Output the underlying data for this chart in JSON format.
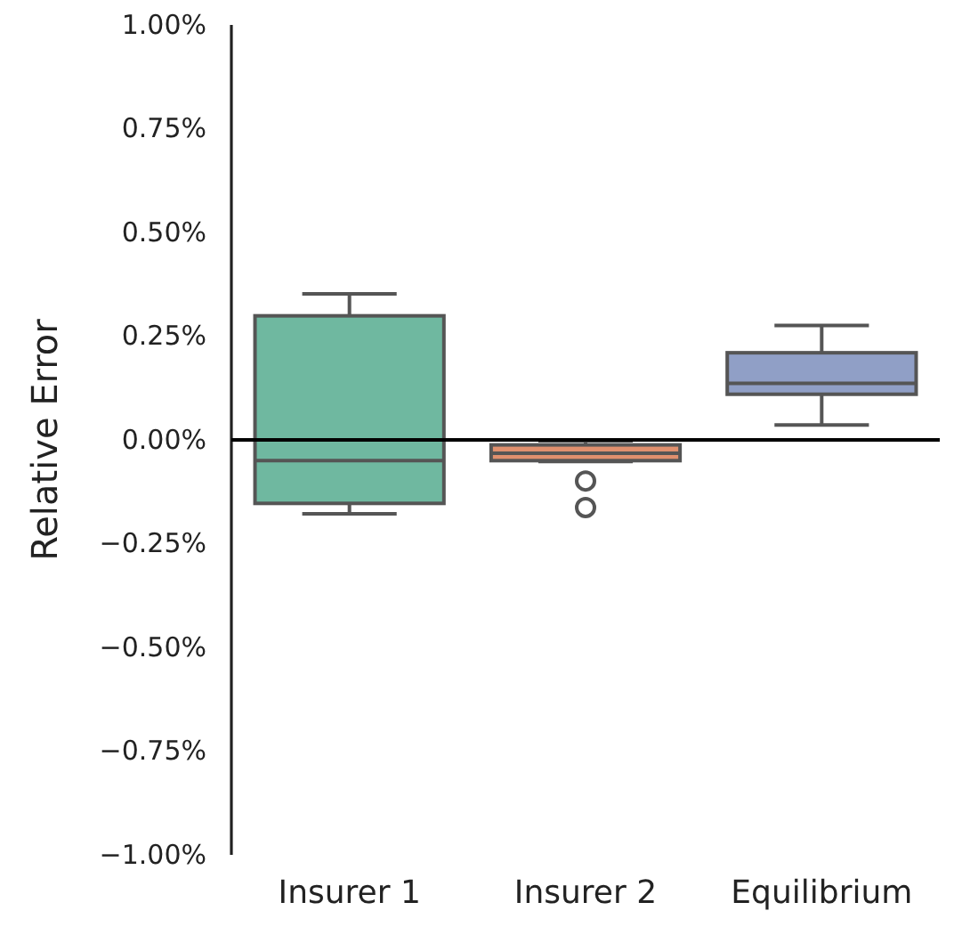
{
  "chart_data": {
    "type": "box",
    "ylabel": "Relative Error",
    "categories": [
      "Insurer 1",
      "Insurer 2",
      "Equilibrium"
    ],
    "colors": [
      "#6fb8a0",
      "#e0906e",
      "#909fc6"
    ],
    "boxes": [
      {
        "low": -0.178,
        "q1": -0.153,
        "median": -0.05,
        "q3": 0.299,
        "high": 0.352
      },
      {
        "low": -0.052,
        "q1": -0.05,
        "median": -0.032,
        "q3": -0.012,
        "high": -0.002,
        "outliers": [
          -0.099,
          -0.163
        ]
      },
      {
        "low": 0.036,
        "q1": 0.11,
        "median": 0.136,
        "q3": 0.21,
        "high": 0.276
      }
    ],
    "ylim": [
      -1,
      1
    ],
    "yticks": [
      {
        "value": -1,
        "label": "−1.00%"
      },
      {
        "value": -0.75,
        "label": "−0.75%"
      },
      {
        "value": -0.5,
        "label": "−0.50%"
      },
      {
        "value": -0.25,
        "label": "−0.25%"
      },
      {
        "value": 0,
        "label": "0.00%"
      },
      {
        "value": 0.25,
        "label": "0.25%"
      },
      {
        "value": 0.5,
        "label": "0.50%"
      },
      {
        "value": 0.75,
        "label": "0.75%"
      },
      {
        "value": 1,
        "label": "1.00%"
      }
    ],
    "ref_lines": [
      {
        "axis": "y",
        "value": 0,
        "color": "#000000"
      }
    ]
  }
}
